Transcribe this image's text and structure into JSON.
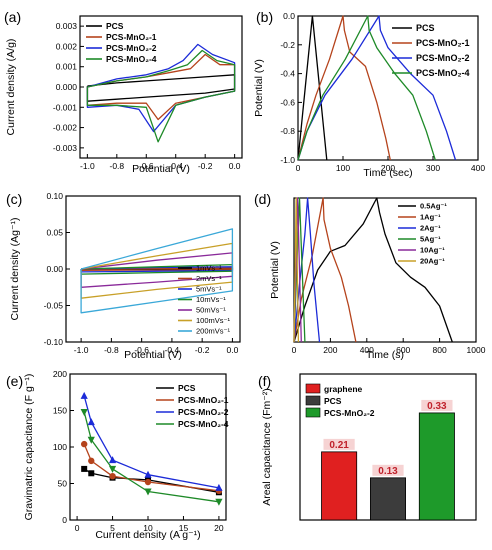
{
  "chart_data": [
    {
      "panel": "(a)",
      "type": "line",
      "xlabel": "Potential (V)",
      "ylabel": "Current density (A/g)",
      "xlim": [
        -1.05,
        0.05
      ],
      "ylim": [
        -0.0035,
        0.0035
      ],
      "xticks": [
        "-1.0",
        "-0.8",
        "-0.6",
        "-0.4",
        "-0.2",
        "0.0"
      ],
      "yticks": [
        "-0.003",
        "-0.002",
        "-0.001",
        "0.000",
        "0.001",
        "0.002",
        "0.003"
      ],
      "legend_position": "top-left",
      "series": [
        {
          "name": "PCS",
          "color": "#000000",
          "x": [
            -1.0,
            -0.8,
            -0.6,
            -0.4,
            -0.2,
            0.0,
            0.0,
            -0.2,
            -0.4,
            -0.6,
            -0.8,
            -1.0,
            -1.0
          ],
          "y": [
            5e-05,
            0.0002,
            0.0003,
            0.0004,
            0.0005,
            0.0006,
            -0.0001,
            -0.0003,
            -0.0004,
            -0.0005,
            -0.0006,
            -0.0007,
            5e-05
          ]
        },
        {
          "name": "PCS-MnO₂-1",
          "color": "#b5431c",
          "x": [
            -1.0,
            -0.8,
            -0.6,
            -0.45,
            -0.3,
            -0.2,
            -0.1,
            0.0,
            0.0,
            -0.2,
            -0.4,
            -0.52,
            -0.6,
            -0.8,
            -1.0,
            -1.0
          ],
          "y": [
            0.0,
            0.0003,
            0.0005,
            0.0007,
            0.0009,
            0.0016,
            0.0011,
            0.0011,
            -0.0002,
            -0.0005,
            -0.0008,
            -0.0016,
            -0.0008,
            -0.0008,
            -0.0009,
            0.0
          ]
        },
        {
          "name": "PCS-MnO₂-2",
          "color": "#1c2bd8",
          "x": [
            -1.0,
            -0.8,
            -0.6,
            -0.45,
            -0.35,
            -0.25,
            -0.15,
            0.0,
            0.0,
            -0.2,
            -0.4,
            -0.55,
            -0.65,
            -0.8,
            -1.0,
            -1.0
          ],
          "y": [
            0.0,
            0.0004,
            0.0006,
            0.0009,
            0.0013,
            0.0021,
            0.0016,
            0.0012,
            -0.0002,
            -0.0005,
            -0.0009,
            -0.0022,
            -0.0011,
            -0.0009,
            -0.001,
            0.0
          ]
        },
        {
          "name": "PCS-MnO₂-4",
          "color": "#1e8a28",
          "x": [
            -1.0,
            -0.8,
            -0.6,
            -0.45,
            -0.32,
            -0.22,
            -0.12,
            0.0,
            0.0,
            -0.2,
            -0.4,
            -0.52,
            -0.6,
            -0.8,
            -1.0,
            -1.0
          ],
          "y": [
            0.0,
            0.0003,
            0.0005,
            0.0008,
            0.0011,
            0.0018,
            0.0013,
            0.0011,
            -0.0002,
            -0.0005,
            -0.0009,
            -0.0027,
            -0.001,
            -0.0009,
            -0.0009,
            0.0
          ]
        }
      ]
    },
    {
      "panel": "(b)",
      "type": "line",
      "xlabel": "Time (sec)",
      "ylabel": "Potential (V)",
      "xlim": [
        0,
        400
      ],
      "ylim": [
        -1.0,
        0.0
      ],
      "xticks": [
        "0",
        "100",
        "200",
        "300",
        "400"
      ],
      "yticks": [
        "-1.0",
        "-0.8",
        "-0.6",
        "-0.4",
        "-0.2",
        "0.0"
      ],
      "legend_position": "right",
      "series": [
        {
          "name": "PCS",
          "color": "#000000",
          "x": [
            0,
            16,
            32,
            48,
            64
          ],
          "y": [
            -1.0,
            -0.5,
            0.0,
            -0.5,
            -1.0
          ]
        },
        {
          "name": "PCS-MnO₂-1",
          "color": "#b5431c",
          "x": [
            0,
            20,
            40,
            70,
            100,
            103,
            115,
            150,
            175,
            195,
            205
          ],
          "y": [
            -1.0,
            -0.75,
            -0.55,
            -0.3,
            0.0,
            -0.1,
            -0.25,
            -0.35,
            -0.6,
            -0.85,
            -1.0
          ]
        },
        {
          "name": "PCS-MnO₂-2",
          "color": "#1c2bd8",
          "x": [
            0,
            20,
            60,
            120,
            180,
            183,
            200,
            250,
            300,
            330,
            350
          ],
          "y": [
            -1.0,
            -0.8,
            -0.55,
            -0.3,
            0.0,
            -0.1,
            -0.22,
            -0.4,
            -0.55,
            -0.8,
            -1.0
          ]
        },
        {
          "name": "PCS-MnO₂-4",
          "color": "#1e8a28",
          "x": [
            0,
            20,
            55,
            105,
            155,
            158,
            175,
            215,
            255,
            285,
            305
          ],
          "y": [
            -1.0,
            -0.8,
            -0.55,
            -0.3,
            0.0,
            -0.1,
            -0.22,
            -0.4,
            -0.55,
            -0.8,
            -1.0
          ]
        }
      ]
    },
    {
      "panel": "(c)",
      "type": "line",
      "xlabel": "Potential (V)",
      "ylabel": "Current density (Ag⁻¹)",
      "xlim": [
        -1.1,
        0.05
      ],
      "ylim": [
        -0.1,
        0.1
      ],
      "xticks": [
        "-1.0",
        "-0.8",
        "-0.6",
        "-0.4",
        "-0.2",
        "0.0"
      ],
      "yticks": [
        "-0.10",
        "-0.05",
        "0.00",
        "0.05",
        "0.10"
      ],
      "legend_position": "bottom-right",
      "series": [
        {
          "name": "1mVs⁻¹",
          "color": "#000000",
          "x": [
            -1.0,
            -0.5,
            0.0,
            0.0,
            -0.5,
            -1.0,
            -1.0
          ],
          "y": [
            0.0,
            0.0003,
            0.0006,
            -0.0005,
            -0.0008,
            -0.001,
            0.0
          ]
        },
        {
          "name": "2mVs⁻¹",
          "color": "#b5431c",
          "x": [
            -1.0,
            -0.5,
            0.0,
            0.0,
            -0.5,
            -1.0,
            -1.0
          ],
          "y": [
            0.0,
            0.0008,
            0.0012,
            -0.001,
            -0.0014,
            -0.0018,
            0.0
          ]
        },
        {
          "name": "5mVs⁻¹",
          "color": "#1c2bd8",
          "x": [
            -1.0,
            -0.5,
            0.0,
            0.0,
            -0.5,
            -1.0,
            -1.0
          ],
          "y": [
            0.0,
            0.002,
            0.003,
            -0.002,
            -0.003,
            -0.004,
            0.0
          ]
        },
        {
          "name": "10mVs⁻¹",
          "color": "#1e8a28",
          "x": [
            -1.0,
            -0.5,
            0.0,
            0.0,
            -0.5,
            -1.0,
            -1.0
          ],
          "y": [
            0.0,
            0.003,
            0.006,
            -0.003,
            -0.005,
            -0.007,
            0.0
          ]
        },
        {
          "name": "50mVs⁻¹",
          "color": "#8a2a9a",
          "x": [
            -1.0,
            -0.5,
            0.0,
            0.0,
            -0.5,
            -1.0,
            -1.0
          ],
          "y": [
            0.0,
            0.012,
            0.022,
            -0.01,
            -0.018,
            -0.025,
            0.0
          ]
        },
        {
          "name": "100mVs⁻¹",
          "color": "#c8a028",
          "x": [
            -1.0,
            -0.5,
            0.0,
            0.0,
            -0.5,
            -1.0,
            -1.0
          ],
          "y": [
            0.0,
            0.018,
            0.035,
            -0.018,
            -0.028,
            -0.04,
            0.0
          ]
        },
        {
          "name": "200mVs⁻¹",
          "color": "#3aa8d8",
          "x": [
            -1.0,
            -0.5,
            0.0,
            0.0,
            -0.5,
            -1.0,
            -1.0
          ],
          "y": [
            0.0,
            0.028,
            0.055,
            -0.03,
            -0.045,
            -0.06,
            0.0
          ]
        }
      ]
    },
    {
      "panel": "(d)",
      "type": "line",
      "xlabel": "Time (s)",
      "ylabel": "Potential (V)",
      "xlim": [
        0,
        1000
      ],
      "ylim": [
        -1.0,
        0.0
      ],
      "xticks": [
        "0",
        "200",
        "400",
        "600",
        "800",
        "1000"
      ],
      "yticks": [],
      "legend_position": "right",
      "series": [
        {
          "name": "0.5Ag⁻¹",
          "color": "#000000",
          "x": [
            0,
            60,
            130,
            200,
            280,
            380,
            455,
            470,
            500,
            560,
            640,
            720,
            800,
            870
          ],
          "y": [
            -1.0,
            -0.75,
            -0.5,
            -0.37,
            -0.33,
            -0.18,
            0.0,
            -0.1,
            -0.25,
            -0.45,
            -0.55,
            -0.62,
            -0.75,
            -1.0
          ]
        },
        {
          "name": "1Ag⁻¹",
          "color": "#b5431c",
          "x": [
            0,
            40,
            100,
            160,
            165,
            200,
            260,
            300,
            340
          ],
          "y": [
            -1.0,
            -0.7,
            -0.4,
            0.0,
            -0.15,
            -0.35,
            -0.55,
            -0.75,
            -1.0
          ]
        },
        {
          "name": "2Ag⁻¹",
          "color": "#1c2bd8",
          "x": [
            0,
            30,
            60,
            75,
            90,
            110,
            140
          ],
          "y": [
            -1.0,
            -0.6,
            -0.25,
            0.0,
            -0.25,
            -0.6,
            -1.0
          ]
        },
        {
          "name": "5Ag⁻¹",
          "color": "#1e8a28",
          "x": [
            0,
            15,
            30,
            45,
            60
          ],
          "y": [
            -1.0,
            -0.5,
            0.0,
            -0.5,
            -1.0
          ]
        },
        {
          "name": "10Ag⁻¹",
          "color": "#8a2a9a",
          "x": [
            0,
            10,
            20,
            30,
            40
          ],
          "y": [
            -1.0,
            -0.5,
            0.0,
            -0.5,
            -1.0
          ]
        },
        {
          "name": "20Ag⁻¹",
          "color": "#c8a028",
          "x": [
            0,
            6,
            12,
            18,
            24
          ],
          "y": [
            -1.0,
            -0.5,
            0.0,
            -0.5,
            -1.0
          ]
        }
      ]
    },
    {
      "panel": "(e)",
      "type": "line",
      "xlabel": "Current density (A g⁻¹)",
      "ylabel": "Gravimatric capacitance (F g⁻¹)",
      "xlim": [
        -1,
        21
      ],
      "ylim": [
        0,
        200
      ],
      "xticks": [
        "0",
        "5",
        "10",
        "15",
        "20"
      ],
      "yticks": [
        "0",
        "50",
        "100",
        "150",
        "200"
      ],
      "legend_position": "top-right",
      "series": [
        {
          "name": "PCS",
          "color": "#000000",
          "marker": "square",
          "x": [
            1,
            2,
            5,
            10,
            20
          ],
          "y": [
            70,
            64,
            58,
            55,
            38
          ]
        },
        {
          "name": "PCS-MnO₂-1",
          "color": "#b5431c",
          "marker": "circle",
          "x": [
            1,
            2,
            5,
            10,
            20
          ],
          "y": [
            104,
            81,
            60,
            52,
            40
          ]
        },
        {
          "name": "PCS-MnO₂-2",
          "color": "#1c2bd8",
          "marker": "triangle-up",
          "x": [
            1,
            2,
            5,
            10,
            20
          ],
          "y": [
            170,
            134,
            82,
            62,
            44
          ]
        },
        {
          "name": "PCS-MnO₂-4",
          "color": "#1e8a28",
          "marker": "triangle-down",
          "x": [
            1,
            2,
            5,
            10,
            20
          ],
          "y": [
            148,
            110,
            70,
            39,
            25
          ]
        }
      ]
    },
    {
      "panel": "(f)",
      "type": "bar",
      "ylabel": "Areal capacitance (Fm⁻²)",
      "ylim": [
        0,
        0.45
      ],
      "categories": [
        "graphene",
        "PCS",
        "PCS-MnO₂-2"
      ],
      "values": [
        0.21,
        0.13,
        0.33
      ],
      "value_labels": [
        "0.21",
        "0.13",
        "0.33"
      ],
      "colors": [
        "#e02020",
        "#3c3c3c",
        "#1e9a2a"
      ],
      "legend_position": "top-left"
    }
  ]
}
